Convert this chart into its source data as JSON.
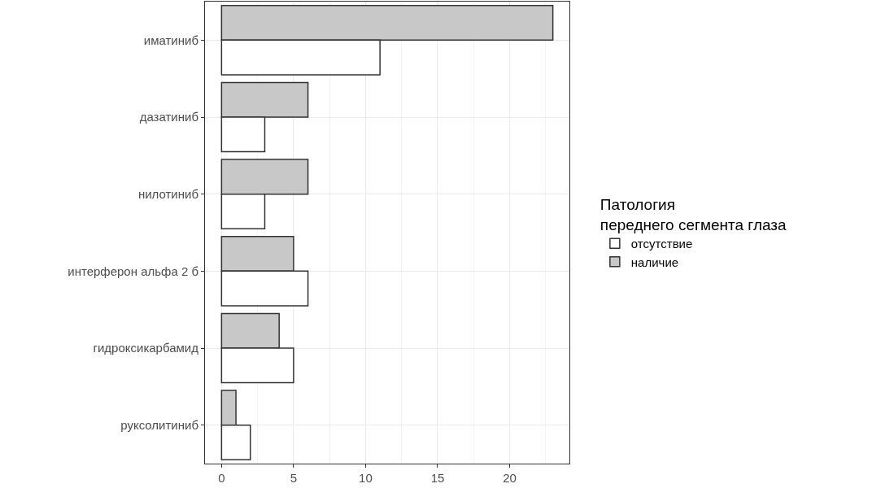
{
  "chart_data": {
    "type": "bar",
    "orientation": "horizontal",
    "categories": [
      "иматиниб",
      "дазатиниб",
      "нилотиниб",
      "интерферон альфа 2 б",
      "гидроксикарбамид",
      "руксолитиниб"
    ],
    "series": [
      {
        "name": "отсутствие",
        "color": "#ffffff",
        "values": [
          11,
          3,
          3,
          6,
          5,
          2
        ]
      },
      {
        "name": "наличие",
        "color": "#c8c8c8",
        "values": [
          23,
          6,
          6,
          5,
          4,
          1
        ]
      }
    ],
    "legend_title": "Патология\nпереднего сегмента глаза",
    "legend": "right",
    "grid": true,
    "xlim": [
      -1.15,
      24.15
    ],
    "xticks": [
      0,
      5,
      10,
      15,
      20
    ]
  }
}
